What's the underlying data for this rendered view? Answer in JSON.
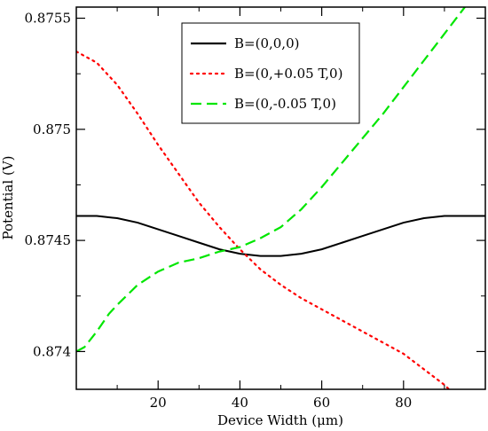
{
  "chart_data": {
    "type": "line",
    "title": "",
    "xlabel": "Device Width (μm)",
    "ylabel": "Potential (V)",
    "xlim": [
      0,
      100
    ],
    "ylim": [
      0.87383,
      0.87555
    ],
    "xticks": [
      20,
      40,
      60,
      80
    ],
    "xtick_labels": [
      "20",
      "40",
      "60",
      "80"
    ],
    "yticks": [
      0.874,
      0.8745,
      0.875,
      0.8755
    ],
    "ytick_labels": [
      "0.874",
      "0.8745",
      "0.875",
      "0.8755"
    ],
    "grid": false,
    "legend_position": "top-center",
    "series": [
      {
        "name": "B=(0,0,0)",
        "color": "#000000",
        "style": "solid",
        "x": [
          0,
          5,
          10,
          15,
          20,
          25,
          30,
          35,
          40,
          45,
          50,
          55,
          60,
          65,
          70,
          75,
          80,
          85,
          90,
          95,
          100
        ],
        "y": [
          0.87461,
          0.87461,
          0.8746,
          0.87458,
          0.87455,
          0.87452,
          0.87449,
          0.87446,
          0.87444,
          0.87443,
          0.87443,
          0.87444,
          0.87446,
          0.87449,
          0.87452,
          0.87455,
          0.87458,
          0.8746,
          0.87461,
          0.87461,
          0.87461
        ]
      },
      {
        "name": "B=(0,+0.05 T,0)",
        "color": "#ff0000",
        "style": "dotted",
        "x": [
          0,
          5,
          10,
          15,
          20,
          25,
          30,
          35,
          40,
          45,
          50,
          55,
          60,
          65,
          70,
          75,
          80,
          85,
          90,
          95,
          100
        ],
        "y": [
          0.87535,
          0.8753,
          0.8752,
          0.87507,
          0.87493,
          0.8748,
          0.87467,
          0.87456,
          0.87446,
          0.87437,
          0.8743,
          0.87424,
          0.87419,
          0.87414,
          0.87409,
          0.87404,
          0.87399,
          0.87392,
          0.87385,
          0.87376,
          0.87366
        ]
      },
      {
        "name": "B=(0,-0.05 T,0)",
        "color": "#00e600",
        "style": "dashed",
        "x": [
          0,
          2,
          5,
          8,
          10,
          15,
          20,
          25,
          30,
          35,
          40,
          45,
          50,
          55,
          60,
          65,
          70,
          75,
          80,
          85,
          90,
          95,
          100
        ],
        "y": [
          0.874,
          0.87402,
          0.87409,
          0.87417,
          0.87421,
          0.8743,
          0.87436,
          0.8744,
          0.87442,
          0.87445,
          0.87447,
          0.87451,
          0.87456,
          0.87464,
          0.87474,
          0.87485,
          0.87496,
          0.87507,
          0.87519,
          0.87531,
          0.87543,
          0.87555,
          0.87567
        ]
      }
    ]
  }
}
